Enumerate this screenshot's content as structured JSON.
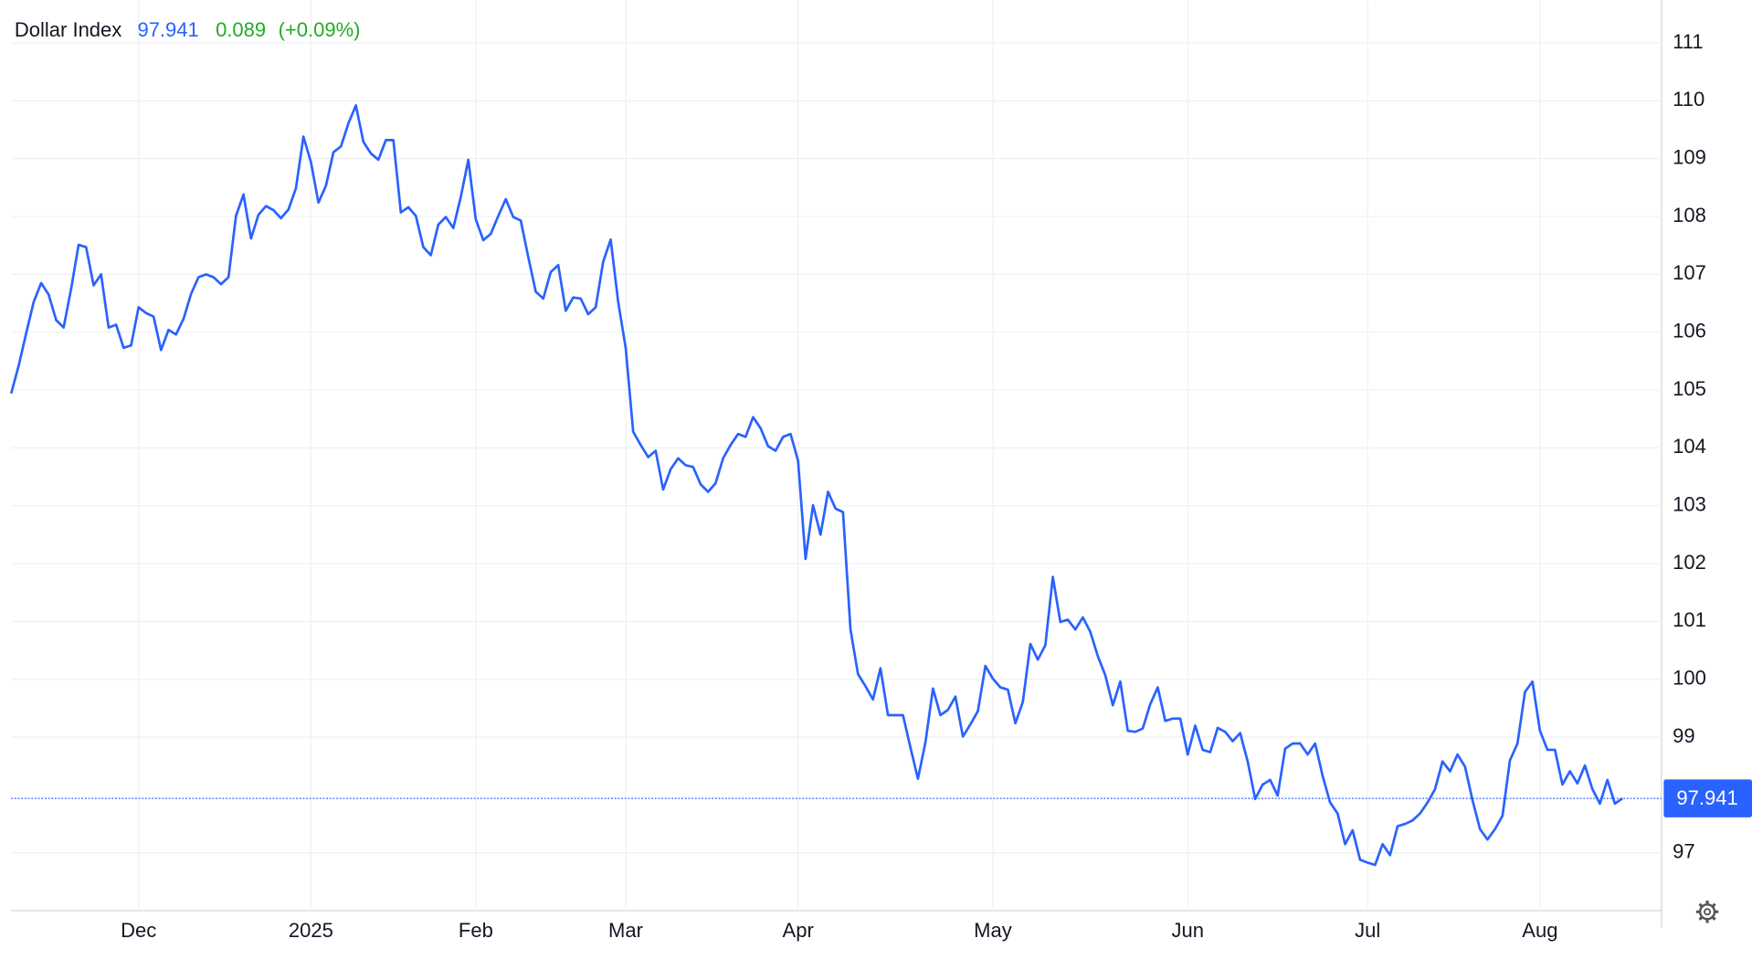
{
  "chart_data": {
    "type": "line",
    "title": "Dollar Index",
    "last_price": 97.941,
    "change": 0.089,
    "change_percent": "(+0.09%)",
    "categories": [
      null,
      null,
      null,
      null,
      null,
      null,
      null,
      null,
      null,
      null,
      null,
      null,
      null,
      null,
      null,
      null,
      null,
      "Dec",
      null,
      null,
      null,
      null,
      null,
      null,
      null,
      null,
      null,
      null,
      null,
      null,
      null,
      null,
      null,
      null,
      null,
      null,
      null,
      null,
      null,
      null,
      "2025",
      null,
      null,
      null,
      null,
      null,
      null,
      null,
      null,
      null,
      null,
      null,
      null,
      null,
      null,
      null,
      null,
      null,
      null,
      null,
      null,
      null,
      "Feb",
      null,
      null,
      null,
      null,
      null,
      null,
      null,
      null,
      null,
      null,
      null,
      null,
      null,
      null,
      null,
      null,
      null,
      null,
      null,
      "Mar",
      null,
      null,
      null,
      null,
      null,
      null,
      null,
      null,
      null,
      null,
      null,
      null,
      null,
      null,
      null,
      null,
      null,
      null,
      null,
      null,
      null,
      null,
      "Apr",
      null,
      null,
      null,
      null,
      null,
      null,
      null,
      null,
      null,
      null,
      null,
      null,
      null,
      null,
      null,
      null,
      null,
      null,
      null,
      null,
      null,
      null,
      null,
      null,
      null,
      "May",
      null,
      null,
      null,
      null,
      null,
      null,
      null,
      null,
      null,
      null,
      null,
      null,
      null,
      null,
      null,
      null,
      null,
      null,
      null,
      null,
      null,
      null,
      null,
      null,
      null,
      "Jun",
      null,
      null,
      null,
      null,
      null,
      null,
      null,
      null,
      null,
      null,
      null,
      null,
      null,
      null,
      null,
      null,
      null,
      null,
      null,
      null,
      null,
      null,
      null,
      "Jul",
      null,
      null,
      null,
      null,
      null,
      null,
      null,
      null,
      null,
      null,
      null,
      null,
      null,
      null,
      null,
      null,
      null,
      null,
      null,
      null,
      null,
      null,
      "Aug",
      null,
      null,
      null,
      null,
      null,
      null,
      null,
      null,
      null,
      null,
      null
    ],
    "series": [
      {
        "name": "Dollar Index",
        "color": "#2962ff",
        "values": [
          104.94,
          105.42,
          105.98,
          106.52,
          106.85,
          106.65,
          106.21,
          106.08,
          106.75,
          107.51,
          107.47,
          106.81,
          107.0,
          106.08,
          106.13,
          105.73,
          105.77,
          106.43,
          106.33,
          106.27,
          105.69,
          106.04,
          105.96,
          106.23,
          106.66,
          106.95,
          107.0,
          106.95,
          106.83,
          106.95,
          108.01,
          108.38,
          107.62,
          108.03,
          108.18,
          108.11,
          107.97,
          108.12,
          108.49,
          109.38,
          108.94,
          108.24,
          108.53,
          109.11,
          109.21,
          109.61,
          109.92,
          109.29,
          109.09,
          108.98,
          109.32,
          109.32,
          108.07,
          108.16,
          108.01,
          107.47,
          107.33,
          107.86,
          107.99,
          107.8,
          108.34,
          108.98,
          107.95,
          107.59,
          107.7,
          108.01,
          108.3,
          107.99,
          107.93,
          107.3,
          106.7,
          106.58,
          107.04,
          107.16,
          106.37,
          106.6,
          106.58,
          106.31,
          106.43,
          107.22,
          107.6,
          106.52,
          105.73,
          104.28,
          104.05,
          103.84,
          103.95,
          103.28,
          103.63,
          103.82,
          103.7,
          103.67,
          103.37,
          103.24,
          103.39,
          103.82,
          104.05,
          104.24,
          104.19,
          104.53,
          104.34,
          104.03,
          103.95,
          104.19,
          104.24,
          103.78,
          102.08,
          103.01,
          102.5,
          103.24,
          102.95,
          102.89,
          100.86,
          100.09,
          99.88,
          99.65,
          100.19,
          99.38,
          99.38,
          99.38,
          98.82,
          98.28,
          98.91,
          99.84,
          99.38,
          99.47,
          99.7,
          99.01,
          99.22,
          99.45,
          100.23,
          100.01,
          99.86,
          99.82,
          99.24,
          99.61,
          100.61,
          100.34,
          100.59,
          101.77,
          100.99,
          101.03,
          100.86,
          101.07,
          100.82,
          100.4,
          100.07,
          99.55,
          99.96,
          99.11,
          99.09,
          99.15,
          99.57,
          99.86,
          99.28,
          99.32,
          99.32,
          98.7,
          99.2,
          98.78,
          98.74,
          99.16,
          99.09,
          98.93,
          99.07,
          98.58,
          97.93,
          98.18,
          98.26,
          97.99,
          98.8,
          98.89,
          98.89,
          98.7,
          98.89,
          98.33,
          97.87,
          97.68,
          97.15,
          97.39,
          96.88,
          96.83,
          96.79,
          97.15,
          96.96,
          97.46,
          97.5,
          97.56,
          97.68,
          97.87,
          98.1,
          98.58,
          98.41,
          98.7,
          98.49,
          97.91,
          97.41,
          97.23,
          97.41,
          97.64,
          98.6,
          98.89,
          99.78,
          99.96,
          99.11,
          98.78,
          98.78,
          98.18,
          98.41,
          98.2,
          98.51,
          98.1,
          97.85,
          98.26,
          97.85,
          97.941
        ]
      }
    ],
    "ylim": [
      96,
      111.74
    ],
    "yticks": [
      97,
      99,
      100,
      101,
      102,
      103,
      104,
      105,
      106,
      107,
      108,
      109,
      110,
      111
    ],
    "grid": true
  }
}
